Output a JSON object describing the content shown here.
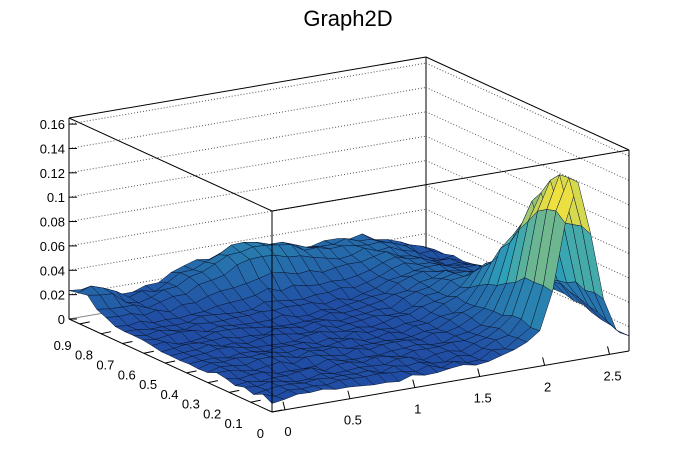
{
  "chart_data": {
    "type": "surface",
    "title": "Graph2D",
    "xlabel": "",
    "ylabel": "",
    "zlabel": "",
    "xlim": [
      -0.1,
      2.65
    ],
    "ylim": [
      0,
      0.95
    ],
    "zlim": [
      0,
      0.165
    ],
    "x_ticks": [
      "0",
      "0.5",
      "1",
      "1.5",
      "2",
      "2.5"
    ],
    "y_ticks": [
      "0",
      "0.1",
      "0.2",
      "0.3",
      "0.4",
      "0.5",
      "0.6",
      "0.7",
      "0.8",
      "0.9"
    ],
    "z_ticks": [
      "0",
      "0.02",
      "0.04",
      "0.06",
      "0.08",
      "0.1",
      "0.12",
      "0.14",
      "0.16"
    ],
    "grid": true,
    "colormap": "blue-to-yellow",
    "peak": {
      "x": 2.25,
      "y": 0.05,
      "z": 0.135
    },
    "colors": {
      "low": "#1e3fa0",
      "mid": "#2fa3b8",
      "high": "#f5e23a",
      "frame": "#000000"
    }
  }
}
